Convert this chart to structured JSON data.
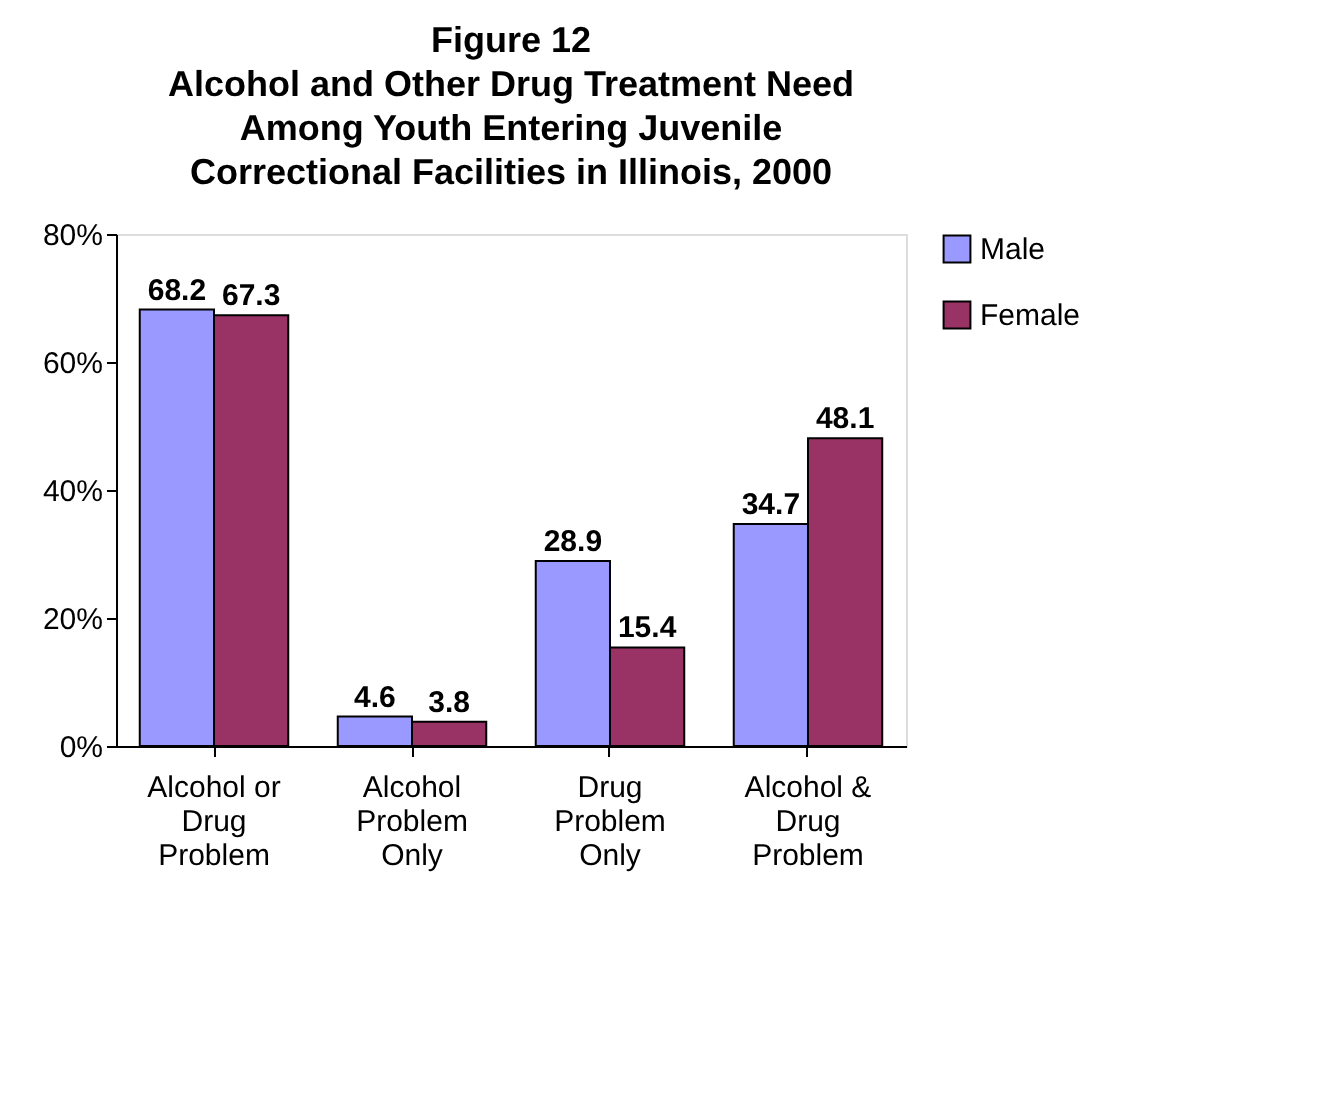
{
  "chart_data": {
    "type": "bar",
    "title": [
      "Figure 12",
      "Alcohol and Other Drug Treatment Need",
      "Among Youth Entering Juvenile",
      "Correctional Facilities in Illinois, 2000"
    ],
    "categories": [
      "Alcohol or Drug Problem",
      "Alcohol Problem Only",
      "Drug Problem Only",
      "Alcohol & Drug Problem"
    ],
    "series": [
      {
        "name": "Male",
        "color": "#9999ff",
        "values": [
          68.2,
          4.6,
          28.9,
          34.7
        ]
      },
      {
        "name": "Female",
        "color": "#993366",
        "values": [
          67.3,
          3.8,
          15.4,
          48.1
        ]
      }
    ],
    "ylim": [
      0,
      80
    ],
    "yticks": [
      {
        "value": 0,
        "label": "0%"
      },
      {
        "value": 20,
        "label": "20%"
      },
      {
        "value": 40,
        "label": "40%"
      },
      {
        "value": 60,
        "label": "60%"
      },
      {
        "value": 80,
        "label": "80%"
      }
    ],
    "data_labels": true,
    "grid": false,
    "legend": "right"
  }
}
